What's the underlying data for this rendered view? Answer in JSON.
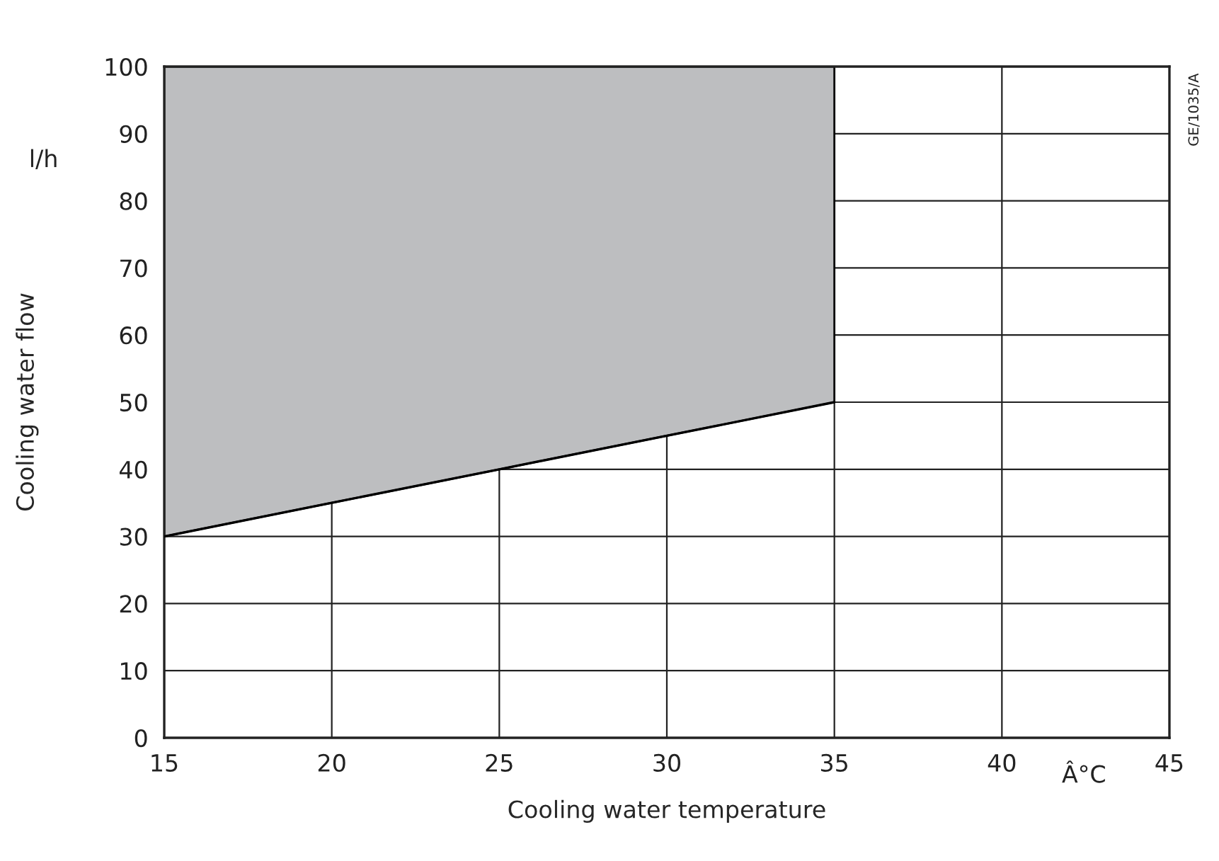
{
  "chart_data": {
    "type": "line",
    "xlabel": "Cooling water temperature",
    "ylabel": "Cooling water flow",
    "annotations": [
      "l/h",
      "Â°C",
      "GE/1035/A"
    ],
    "series": [
      {
        "color": "#000000",
        "x": [
          15,
          20,
          25,
          30,
          35
        ],
        "values": [
          30,
          35,
          40,
          45,
          50
        ],
        "lower": [
          30,
          35,
          40,
          45,
          50
        ],
        "upper": [
          100,
          100,
          100,
          100,
          100
        ]
      }
    ],
    "xlim": [
      15,
      45
    ],
    "xticks": [
      15,
      20,
      25,
      30,
      35,
      40,
      45
    ],
    "ylim": [
      0,
      100
    ],
    "yticks": [
      0,
      10,
      20,
      30,
      40,
      50,
      60,
      70,
      80,
      90,
      100
    ],
    "grid": true,
    "marker": "none",
    "line_style": "solid"
  }
}
